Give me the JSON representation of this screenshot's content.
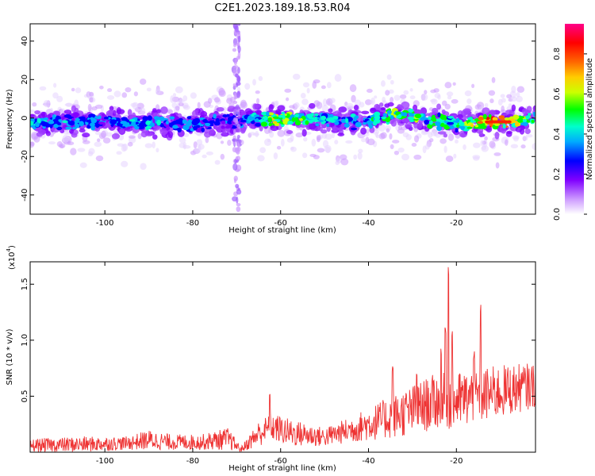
{
  "title": "C2E1.2023.189.18.53.R04",
  "chart_data": [
    {
      "type": "heatmap",
      "ylabel": "Frequency (Hz)",
      "xlabel": "Height of straight line (km)",
      "xlim": [
        -117,
        -2
      ],
      "ylim": [
        -50,
        49
      ],
      "xticks": [
        -100,
        -80,
        -60,
        -40,
        -20
      ],
      "yticks": [
        -40,
        -20,
        0,
        20,
        40
      ],
      "colorbar": {
        "label": "Normalized spectral amplitude",
        "range": [
          0,
          0.95
        ],
        "ticks": [
          "0.0",
          "0.2",
          "0.4",
          "0.6",
          "0.8"
        ],
        "colors": [
          "#ffffff",
          "#cc99ff",
          "#8000ff",
          "#0000ff",
          "#00aaff",
          "#00ffcc",
          "#00ff00",
          "#ccff00",
          "#ffcc00",
          "#ff6600",
          "#ff0000",
          "#ff0088"
        ]
      },
      "spectral_ridge": [
        {
          "x": -117,
          "freq": -3,
          "amplitude": 0.42
        },
        {
          "x": -110,
          "freq": -2,
          "amplitude": 0.38
        },
        {
          "x": -100,
          "freq": -2,
          "amplitude": 0.35
        },
        {
          "x": -90,
          "freq": -3,
          "amplitude": 0.4
        },
        {
          "x": -80,
          "freq": -3,
          "amplitude": 0.35
        },
        {
          "x": -70,
          "freq": -1,
          "amplitude": 0.3
        },
        {
          "x": -60,
          "freq": 0,
          "amplitude": 0.7
        },
        {
          "x": -50,
          "freq": -1,
          "amplitude": 0.4
        },
        {
          "x": -40,
          "freq": -2,
          "amplitude": 0.45
        },
        {
          "x": -35,
          "freq": 2,
          "amplitude": 0.6
        },
        {
          "x": -28,
          "freq": 0,
          "amplitude": 0.55
        },
        {
          "x": -20,
          "freq": -3,
          "amplitude": 0.5
        },
        {
          "x": -12,
          "freq": -2,
          "amplitude": 0.9
        },
        {
          "x": -4,
          "freq": -1,
          "amplitude": 0.55
        }
      ],
      "vertical_streak_x": -70
    },
    {
      "type": "line",
      "ylabel": "SNR (10 * v/v)",
      "xlabel": "Height of straight line (km)",
      "multiplier_label": "(x10",
      "multiplier_exp": "4",
      "multiplier_close": ")",
      "xlim": [
        -117,
        -2
      ],
      "ylim": [
        0,
        1.7
      ],
      "xticks": [
        -100,
        -80,
        -60,
        -40,
        -20
      ],
      "yticks": [
        "0.5",
        "1.0",
        "1.5"
      ],
      "series": [
        {
          "color": "#ee3333",
          "envelope": [
            {
              "x": -117,
              "lo": 0.0,
              "hi": 0.12
            },
            {
              "x": -105,
              "lo": 0.0,
              "hi": 0.14
            },
            {
              "x": -95,
              "lo": 0.02,
              "hi": 0.14
            },
            {
              "x": -90,
              "lo": 0.02,
              "hi": 0.2
            },
            {
              "x": -85,
              "lo": 0.02,
              "hi": 0.16
            },
            {
              "x": -78,
              "lo": 0.02,
              "hi": 0.16
            },
            {
              "x": -72,
              "lo": 0.02,
              "hi": 0.22
            },
            {
              "x": -69,
              "lo": 0.0,
              "hi": 0.05
            },
            {
              "x": -65,
              "lo": 0.05,
              "hi": 0.28
            },
            {
              "x": -62,
              "lo": 0.1,
              "hi": 0.35
            },
            {
              "x": -58,
              "lo": 0.05,
              "hi": 0.3
            },
            {
              "x": -50,
              "lo": 0.05,
              "hi": 0.22
            },
            {
              "x": -45,
              "lo": 0.08,
              "hi": 0.3
            },
            {
              "x": -40,
              "lo": 0.1,
              "hi": 0.4
            },
            {
              "x": -35,
              "lo": 0.12,
              "hi": 0.5
            },
            {
              "x": -30,
              "lo": 0.15,
              "hi": 0.6
            },
            {
              "x": -25,
              "lo": 0.2,
              "hi": 0.7
            },
            {
              "x": -20,
              "lo": 0.2,
              "hi": 0.72
            },
            {
              "x": -15,
              "lo": 0.25,
              "hi": 0.75
            },
            {
              "x": -10,
              "lo": 0.3,
              "hi": 0.78
            },
            {
              "x": -2,
              "lo": 0.4,
              "hi": 0.8
            }
          ],
          "spikes": [
            {
              "x": -62.5,
              "y": 0.53
            },
            {
              "x": -34.5,
              "y": 0.78
            },
            {
              "x": -29,
              "y": 0.72
            },
            {
              "x": -23.5,
              "y": 0.95
            },
            {
              "x": -22.5,
              "y": 1.15
            },
            {
              "x": -21.8,
              "y": 1.7
            },
            {
              "x": -21.0,
              "y": 1.1
            },
            {
              "x": -14.5,
              "y": 1.35
            },
            {
              "x": -16,
              "y": 0.9
            }
          ]
        }
      ]
    }
  ]
}
